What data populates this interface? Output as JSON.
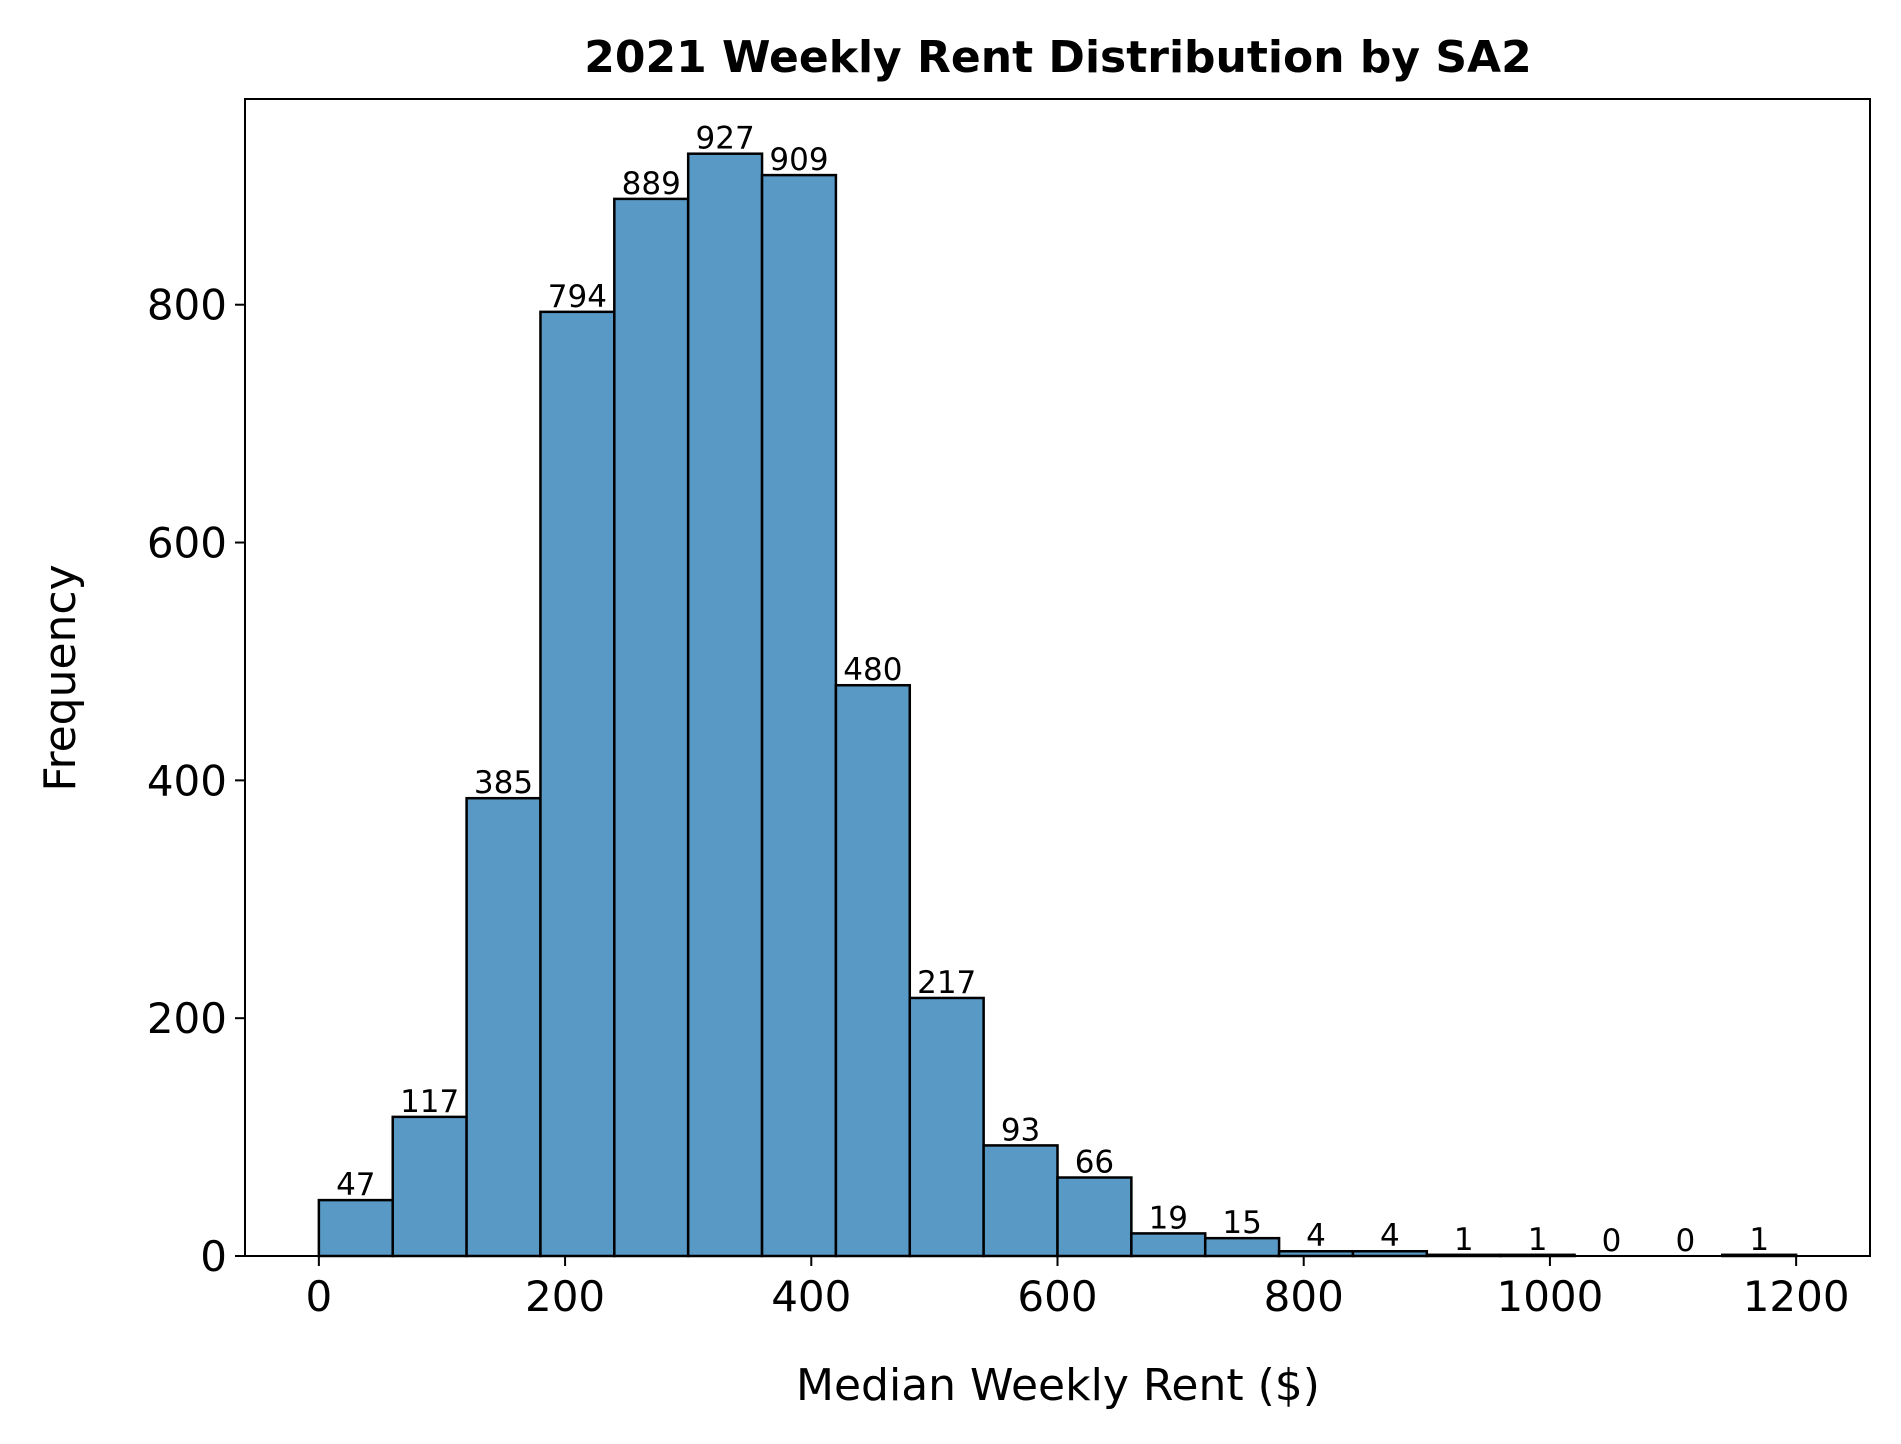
{
  "chart_data": {
    "type": "bar",
    "title": "2021 Weekly Rent Distribution by SA2",
    "xlabel": "Median Weekly Rent ($)",
    "ylabel": "Frequency",
    "bin_edges": [
      0,
      60,
      120,
      180,
      240,
      300,
      360,
      420,
      480,
      540,
      600,
      660,
      720,
      780,
      840,
      900,
      960,
      1020,
      1080,
      1140,
      1200
    ],
    "values": [
      47,
      117,
      385,
      794,
      889,
      927,
      909,
      480,
      217,
      93,
      66,
      19,
      15,
      4,
      4,
      1,
      1,
      0,
      0,
      1
    ],
    "value_labels": [
      "47",
      "117",
      "385",
      "794",
      "889",
      "927",
      "909",
      "480",
      "217",
      "93",
      "66",
      "19",
      "15",
      "4",
      "4",
      "1",
      "1",
      "0",
      "0",
      "1"
    ],
    "xlim": [
      -60,
      1260
    ],
    "ylim": [
      0,
      973
    ],
    "x_ticks": [
      0,
      200,
      400,
      600,
      800,
      1000,
      1200
    ],
    "x_tick_labels": [
      "0",
      "200",
      "400",
      "600",
      "800",
      "1000",
      "1200"
    ],
    "y_ticks": [
      0,
      200,
      400,
      600,
      800
    ],
    "y_tick_labels": [
      "0",
      "200",
      "400",
      "600",
      "800"
    ],
    "grid": false,
    "legend": "none",
    "bar_color": "#5899c6",
    "edge_color": "#000000"
  }
}
